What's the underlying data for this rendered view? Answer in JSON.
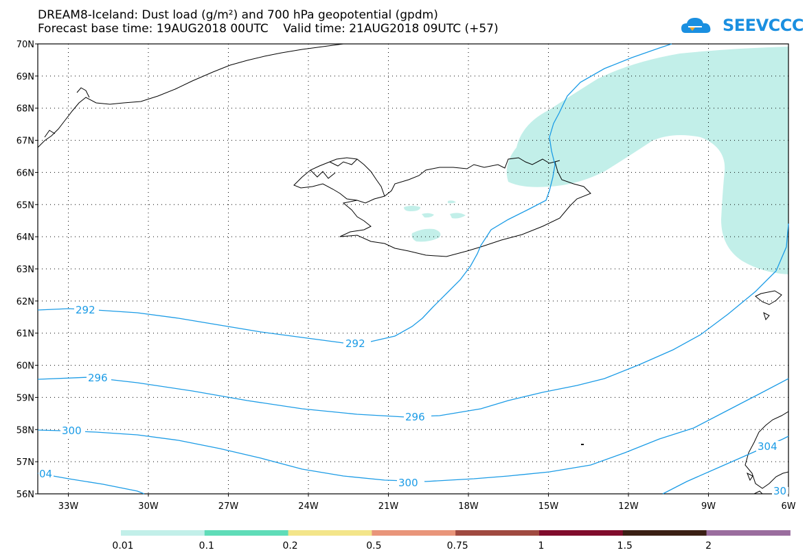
{
  "header": {
    "line1": "DREAM8-Iceland: Dust load (g/m²) and 700 hPa geopotential (gpdm)",
    "line2": "Forecast base time: 19AUG2018 00UTC    Valid time: 21AUG2018 09UTC (+57)"
  },
  "logo": {
    "text": "SEEVCCC",
    "icon": "cloud-logo-icon",
    "color": "#1a8fe0"
  },
  "map": {
    "lat_labels": [
      "70N",
      "69N",
      "68N",
      "67N",
      "66N",
      "65N",
      "64N",
      "63N",
      "62N",
      "61N",
      "60N",
      "59N",
      "58N",
      "57N",
      "56N"
    ],
    "lon_labels": [
      "33W",
      "30W",
      "27W",
      "24W",
      "21W",
      "18W",
      "15W",
      "12W",
      "9W",
      "6W"
    ],
    "contour_color": "#1a9be6",
    "contour_labels": [
      "292",
      "292",
      "296",
      "296",
      "300",
      "300",
      "04",
      "304",
      "30"
    ],
    "dust_color": "#c2efe9"
  },
  "colorbar": {
    "colors": [
      "#c2efe9",
      "#5fdcb8",
      "#f3e58a",
      "#e9957a",
      "#a04a40",
      "#800c2c",
      "#3a1f14",
      "#9a6d9e"
    ],
    "labels": [
      "0.01",
      "0.1",
      "0.2",
      "0.5",
      "0.75",
      "1",
      "1.5",
      "2"
    ]
  }
}
